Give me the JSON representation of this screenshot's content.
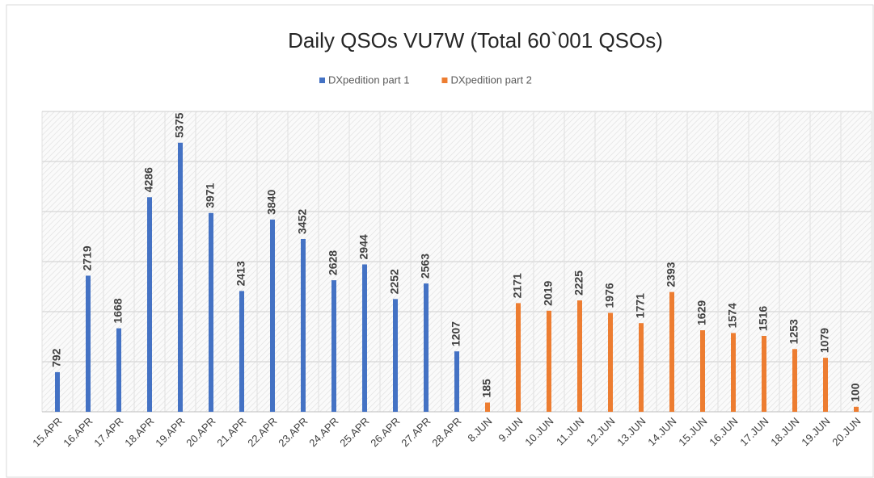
{
  "chart_data": {
    "type": "bar",
    "title": "Daily QSOs VU7W (Total 60`001 QSOs)",
    "categories": [
      "15.APR",
      "16.APR",
      "17.APR",
      "18.APR",
      "19.APR",
      "20.APR",
      "21.APR",
      "22.APR",
      "23.APR",
      "24.APR",
      "25.APR",
      "26.APR",
      "27.APR",
      "28.APR",
      "8.JUN",
      "9.JUN",
      "10.JUN",
      "11.JUN",
      "12.JUN",
      "13.JUN",
      "14.JUN",
      "15.JUN",
      "16.JUN",
      "17.JUN",
      "18.JUN",
      "19.JUN",
      "20.JUN"
    ],
    "series": [
      {
        "name": "DXpedition part 1",
        "color": "#4472c4",
        "values": [
          792,
          2719,
          1668,
          4286,
          5375,
          3971,
          2413,
          3840,
          3452,
          2628,
          2944,
          2252,
          2563,
          1207,
          null,
          null,
          null,
          null,
          null,
          null,
          null,
          null,
          null,
          null,
          null,
          null,
          null
        ]
      },
      {
        "name": "DXpedition part 2",
        "color": "#ed7d31",
        "values": [
          null,
          null,
          null,
          null,
          null,
          null,
          null,
          null,
          null,
          null,
          null,
          null,
          null,
          null,
          185,
          2171,
          2019,
          2225,
          1976,
          1771,
          2393,
          1629,
          1574,
          1516,
          1253,
          1079,
          100
        ]
      }
    ],
    "ylim": [
      0,
      6000
    ],
    "yticks": [
      0,
      1000,
      2000,
      3000,
      4000,
      5000,
      6000
    ],
    "grid": true,
    "legend": "top"
  }
}
